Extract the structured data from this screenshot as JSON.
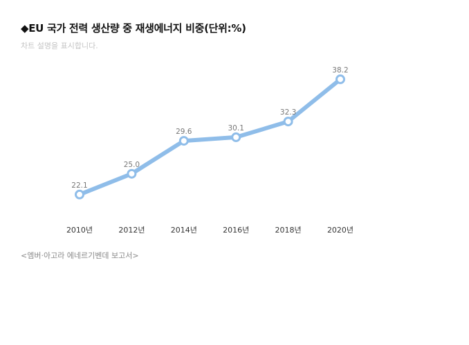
{
  "header": {
    "title": "◆EU 국가 전력 생산량 중 재생에너지 비중(단위:%)",
    "subtitle": "차트 설명을 표시합니다."
  },
  "footer": {
    "source": "<엠버·아고라 에네르기벤데 보고서>"
  },
  "chart_data": {
    "type": "line",
    "title": "◆EU 국가 전력 생산량 중 재생에너지 비중(단위:%)",
    "xlabel": "",
    "ylabel": "",
    "categories": [
      "2010년",
      "2012년",
      "2014년",
      "2016년",
      "2018년",
      "2020년"
    ],
    "series": [
      {
        "values": [
          22.1,
          25.0,
          29.6,
          30.1,
          32.3,
          38.2
        ],
        "labels": [
          "22.1",
          "25.0",
          "29.6",
          "30.1",
          "32.3",
          "38.2"
        ]
      }
    ],
    "ylim": [
      19.2,
      40.6
    ],
    "grid": false,
    "legend": "none",
    "colors": {
      "line": "#8fbde9",
      "marker_fill": "#ffffff",
      "marker_stroke": "#8fbde9"
    }
  }
}
